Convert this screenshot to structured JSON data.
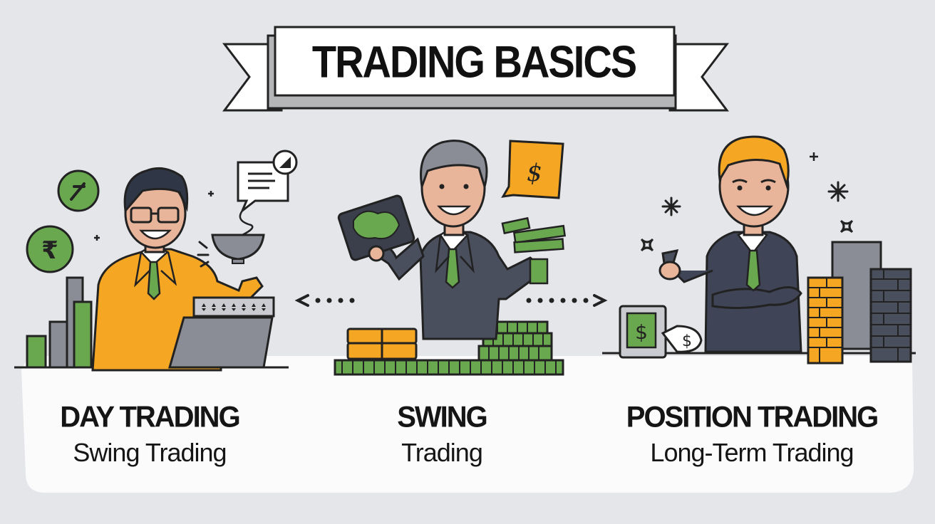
{
  "title": "TRADING BASICS",
  "styles": [
    {
      "id": "day",
      "name": "DAY TRADING",
      "subtitle": "Swing Trading",
      "suit_color": "#f5a623"
    },
    {
      "id": "swing",
      "name": "SWING",
      "subtitle": "Trading",
      "suit_color": "#4a4f5e"
    },
    {
      "id": "position",
      "name": "POSITION TRADING",
      "subtitle": "Long-Term Trading",
      "suit_color": "#3f4556"
    }
  ],
  "icons": {
    "coin_symbol_1": "₹",
    "coin_symbol_2": "₹",
    "dollar_sign": "$"
  },
  "colors": {
    "background": "#e4e6ea",
    "accent_green": "#6aa84f",
    "accent_orange": "#f5a623",
    "ink": "#1a1a1a"
  }
}
